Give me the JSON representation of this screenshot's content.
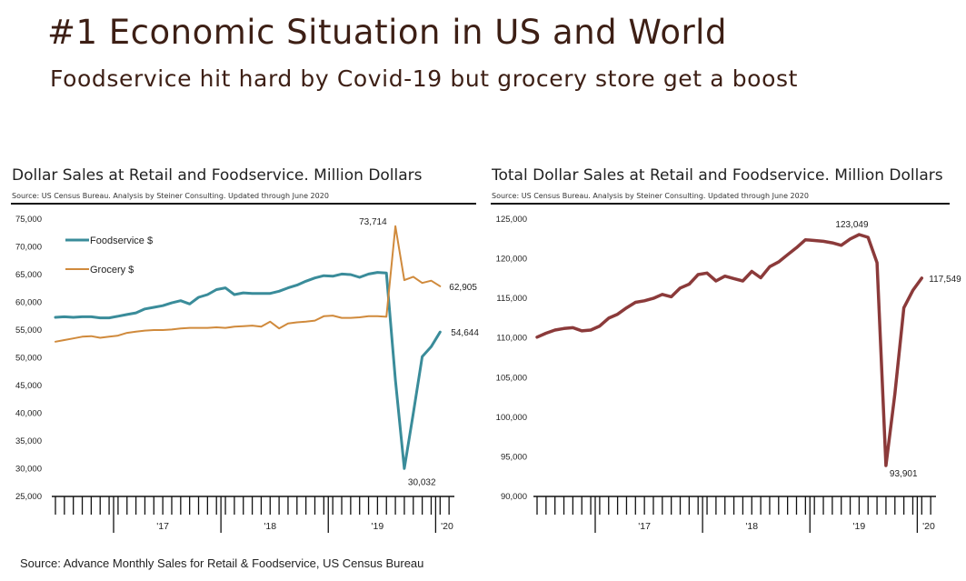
{
  "slide": {
    "title": "#1 Economic Situation in US and World",
    "subtitle": "Foodservice hit hard by Covid-19 but grocery store get a boost",
    "footer": "Source:  Advance Monthly Sales for Retail & Foodservice, US Census Bureau"
  },
  "chart_data": [
    {
      "type": "line",
      "title": "Dollar Sales at Retail and Foodservice. Million Dollars",
      "source_note": "Source: US Census Bureau.  Analysis by Steiner Consulting. Updated through June 2020",
      "ylim": [
        25000,
        75000
      ],
      "y_ticks": [
        "25,000",
        "30,000",
        "35,000",
        "40,000",
        "45,000",
        "50,000",
        "55,000",
        "60,000",
        "65,000",
        "70,000",
        "75,000"
      ],
      "x_tick_labels": [
        "'17",
        "'18",
        "'19",
        "'20"
      ],
      "x_start": "2016-06",
      "x_end": "2020-06",
      "legend_position": "top-left",
      "series": [
        {
          "name": "Foodservice $",
          "color": "#3a8c9a",
          "values": [
            57300,
            57400,
            57300,
            57400,
            57400,
            57200,
            57200,
            57500,
            57800,
            58100,
            58800,
            59100,
            59400,
            59900,
            60300,
            59700,
            60900,
            61400,
            62300,
            62600,
            61400,
            61700,
            61600,
            61600,
            61600,
            62000,
            62600,
            63100,
            63800,
            64400,
            64800,
            64700,
            65100,
            65000,
            64500,
            65100,
            65400,
            65300,
            46000,
            30032,
            40000,
            50200,
            52000,
            54644
          ]
        },
        {
          "name": "Grocery $",
          "color": "#d08a3c",
          "values": [
            52900,
            53200,
            53500,
            53800,
            53900,
            53600,
            53800,
            54000,
            54500,
            54700,
            54900,
            55000,
            55000,
            55100,
            55300,
            55400,
            55400,
            55400,
            55500,
            55400,
            55600,
            55700,
            55800,
            55600,
            56500,
            55300,
            56200,
            56400,
            56500,
            56700,
            57500,
            57600,
            57200,
            57200,
            57300,
            57500,
            57500,
            57400,
            73714,
            64000,
            64600,
            63500,
            63900,
            62905
          ]
        }
      ],
      "annotations": [
        {
          "label": "73,714",
          "x_index": 38,
          "value": 73714
        },
        {
          "label": "62,905",
          "x_index": 43,
          "value": 62905
        },
        {
          "label": "54,644",
          "x_index": 43,
          "value": 54644
        },
        {
          "label": "30,032",
          "x_index": 39,
          "value": 30032
        }
      ]
    },
    {
      "type": "line",
      "title": "Total Dollar Sales at Retail and Foodservice. Million Dollars",
      "source_note": "Source: US Census Bureau.  Analysis by Steiner Consulting. Updated through June 2020",
      "ylim": [
        90000,
        125000
      ],
      "y_ticks": [
        "90,000",
        "95,000",
        "100,000",
        "105,000",
        "110,000",
        "115,000",
        "120,000",
        "125,000"
      ],
      "x_tick_labels": [
        "'17",
        "'18",
        "'19",
        "'20"
      ],
      "x_start": "2016-06",
      "x_end": "2020-06",
      "series": [
        {
          "name": "",
          "color": "#8b3a3a",
          "values": [
            110100,
            110600,
            111000,
            111200,
            111300,
            110900,
            111000,
            111500,
            112500,
            113000,
            113800,
            114500,
            114700,
            115000,
            115500,
            115200,
            116300,
            116800,
            118000,
            118200,
            117200,
            117800,
            117500,
            117200,
            118400,
            117600,
            119000,
            119600,
            120500,
            121400,
            122400,
            122300,
            122200,
            122000,
            121700,
            122500,
            123049,
            122700,
            119500,
            93901,
            103000,
            113800,
            116000,
            117549
          ]
        }
      ],
      "annotations": [
        {
          "label": "123,049",
          "x_index": 36,
          "value": 123049
        },
        {
          "label": "93,901",
          "x_index": 39,
          "value": 93901
        },
        {
          "label": "117,549",
          "x_index": 43,
          "value": 117549
        }
      ]
    }
  ]
}
